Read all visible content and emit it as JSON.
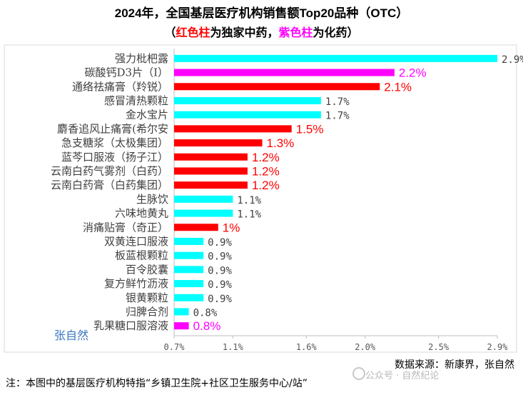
{
  "title": "2024年，全国基层医疗机构销售额Top20品种（OTC）",
  "subtitle": {
    "open": "（",
    "red_part": "红色柱",
    "mid": "为独家中药，",
    "mag_part": "紫色柱",
    "tail": "为化药）"
  },
  "chart_data": {
    "type": "bar",
    "orientation": "horizontal",
    "xlim": [
      0.7,
      2.9
    ],
    "xticks": [
      "0.7%",
      "1.1%",
      "1.6%",
      "2.0%",
      "2.5%",
      "2.9%"
    ],
    "xtick_values": [
      0.7,
      1.1,
      1.6,
      2.0,
      2.5,
      2.9
    ],
    "grid": false,
    "colors": {
      "other": "#00ffff",
      "exclusive_tcm": "#ff0000",
      "chemical": "#ff00ff"
    },
    "categories": [
      "强力枇杷露",
      "碳酸钙D3片（Ⅰ）",
      "通络祛痛膏（羚锐）",
      "感冒清热颗粒",
      "金水宝片",
      "麝香追风止痛膏(希尔安",
      "急支糖浆（太极集团）",
      "蓝芩口服液（扬子江）",
      "云南白药气雾剂（白药）",
      "云南白药膏（白药集团）",
      "生脉饮",
      "六味地黄丸",
      "消痛贴膏（奇正）",
      "双黄连口服液",
      "板蓝根颗粒",
      "百令胶囊",
      "复方鲜竹沥液",
      "银黄颗粒",
      "归脾合剂",
      "乳果糖口服溶液"
    ],
    "values": [
      2.9,
      2.2,
      2.1,
      1.7,
      1.7,
      1.5,
      1.3,
      1.2,
      1.2,
      1.2,
      1.1,
      1.1,
      1.0,
      0.9,
      0.9,
      0.9,
      0.9,
      0.9,
      0.8,
      0.8
    ],
    "labels": [
      "2.9%",
      "2.2%",
      "2.1%",
      "1.7%",
      "1.7%",
      "1.5%",
      "1.3%",
      "1.2%",
      "1.2%",
      "1.2%",
      "1.1%",
      "1.1%",
      "1%",
      "0.9%",
      "0.9%",
      "0.9%",
      "0.9%",
      "0.9%",
      "0.8%",
      "0.8%"
    ],
    "kinds": [
      "other",
      "chemical",
      "exclusive_tcm",
      "other",
      "other",
      "exclusive_tcm",
      "exclusive_tcm",
      "exclusive_tcm",
      "exclusive_tcm",
      "exclusive_tcm",
      "other",
      "other",
      "exclusive_tcm",
      "other",
      "other",
      "other",
      "other",
      "other",
      "other",
      "chemical"
    ]
  },
  "source": "数据来源：新康界，张自然",
  "note": "注：本图中的基层医疗机构特指“乡镇卫生院+社区卫生服务中心/站”",
  "watermark_left": "张自然",
  "watermark_right": "公众号 · 自然纪论"
}
